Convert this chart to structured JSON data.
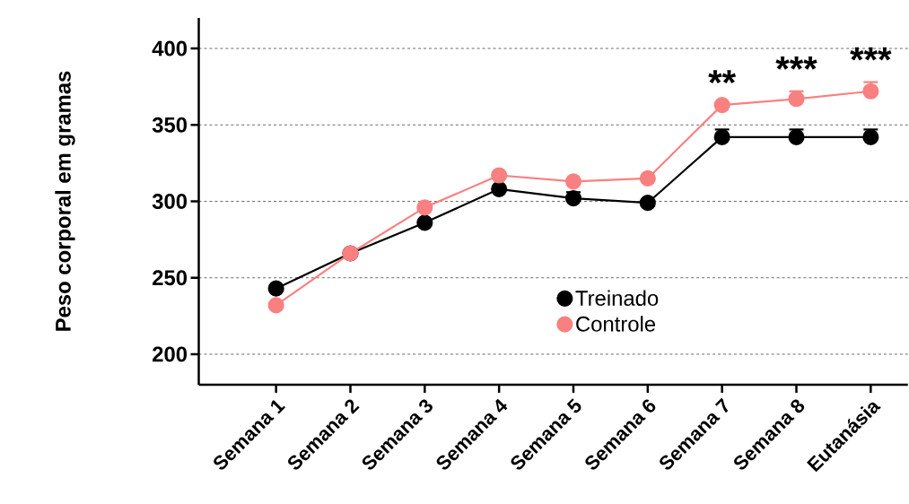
{
  "chart_data": {
    "type": "line",
    "ylabel": "Peso corporal em gramas",
    "categories": [
      "Semana 1",
      "Semana 2",
      "Semana 3",
      "Semana 4",
      "Semana 5",
      "Semana 6",
      "Semana 7",
      "Semana 8",
      "Eutanásia"
    ],
    "series": [
      {
        "name": "Treinado",
        "color": "#000000",
        "values": [
          243,
          266,
          286,
          308,
          302,
          299,
          342,
          342,
          342
        ],
        "errors": [
          null,
          null,
          null,
          null,
          [
            302,
            306
          ],
          null,
          [
            342,
            347
          ],
          [
            342,
            347
          ],
          [
            342,
            347
          ]
        ]
      },
      {
        "name": "Controle",
        "color": "#f98080",
        "values": [
          232,
          266,
          296,
          317,
          313,
          315,
          363,
          367,
          372
        ],
        "errors": [
          null,
          null,
          null,
          null,
          null,
          null,
          null,
          [
            367,
            372
          ],
          [
            372,
            378
          ]
        ]
      }
    ],
    "ylim": [
      180,
      420
    ],
    "yticks": [
      200,
      250,
      300,
      350,
      400
    ],
    "grid": "y",
    "legend": "bottom right",
    "marker": "circle",
    "line_style": "solid",
    "annotations": [
      "**",
      "***",
      "***"
    ]
  }
}
